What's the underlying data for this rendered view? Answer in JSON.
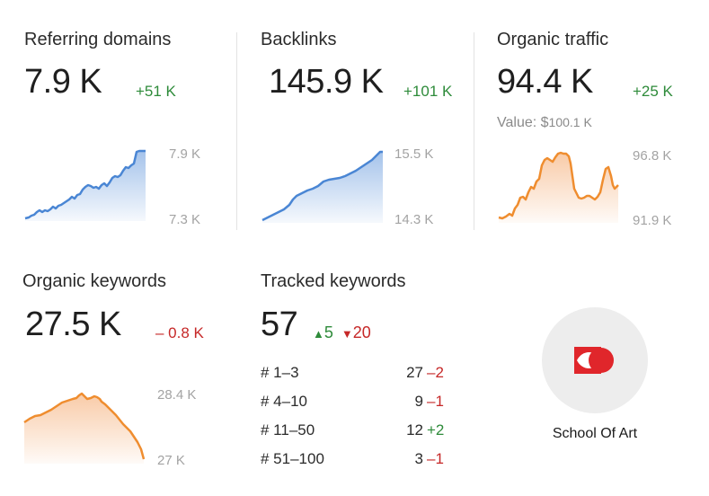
{
  "referring_domains": {
    "title": "Referring domains",
    "value": "7.9 K",
    "delta": "+51 K",
    "axis_top": "7.9 K",
    "axis_bottom": "7.3 K"
  },
  "backlinks": {
    "title": "Backlinks",
    "value": "145.9 K",
    "delta": "+101 K",
    "axis_top": "15.5 K",
    "axis_bottom": "14.3 K"
  },
  "organic_traffic": {
    "title": "Organic traffic",
    "value": "94.4 K",
    "delta": "+25 K",
    "value_label": "Value: $",
    "value_amount": "100.1 K",
    "axis_top": "96.8 K",
    "axis_bottom": "91.9 K"
  },
  "organic_keywords": {
    "title": "Organic keywords",
    "value": "27.5 K",
    "delta": "– 0.8 K",
    "axis_top": "28.4 K",
    "axis_bottom": "27 K"
  },
  "tracked_keywords": {
    "title": "Tracked keywords",
    "value": "57",
    "up_icon": "triangle-up",
    "up": "5",
    "down_icon": "triangle-down",
    "down": "20",
    "rows": [
      {
        "label": "# 1–3",
        "count": "27",
        "change": "–2",
        "direction": "down"
      },
      {
        "label": "# 4–10",
        "count": "9",
        "change": "–1",
        "direction": "down"
      },
      {
        "label": "# 11–50",
        "count": "12",
        "change": "+2",
        "direction": "up"
      },
      {
        "label": "# 51–100",
        "count": "3",
        "change": "–1",
        "direction": "down"
      }
    ]
  },
  "brand": {
    "name": "School Of Art",
    "logo_icon": "school-of-art-logo"
  },
  "colors": {
    "positive": "#2e8b3a",
    "negative": "#c62828",
    "blue_line": "#4a86d4",
    "orange_line": "#ef8d2f",
    "logo_red": "#e0262b"
  }
}
